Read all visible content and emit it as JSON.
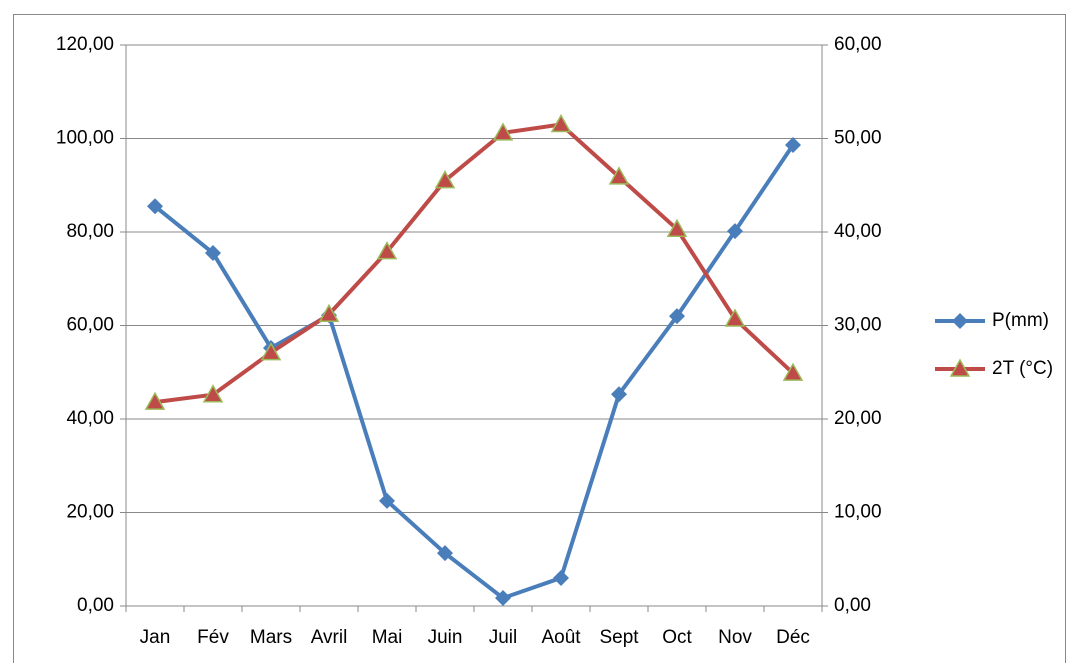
{
  "chart_data": {
    "type": "line",
    "categories": [
      "Jan",
      "Fév",
      "Mars",
      "Avril",
      "Mai",
      "Juin",
      "Juil",
      "Août",
      "Sept",
      "Oct",
      "Nov",
      "Déc"
    ],
    "series": [
      {
        "name": "P(mm)",
        "color": "#4a7ebb",
        "marker": "diamond",
        "axis": "y",
        "values": [
          85.5,
          75.5,
          55.2,
          62.2,
          22.5,
          11.3,
          1.7,
          6.0,
          45.3,
          62.0,
          80.2,
          98.6
        ]
      },
      {
        "name": "2T (°C)",
        "color": "#be4b48",
        "marker": "triangle",
        "marker_edge": "#9bbb59",
        "axis": "y2",
        "values": [
          21.8,
          22.6,
          27.1,
          31.2,
          37.9,
          45.5,
          50.6,
          51.5,
          45.9,
          40.3,
          30.7,
          24.9
        ]
      }
    ],
    "ylim": [
      0,
      120
    ],
    "yticks": [
      {
        "value": 0,
        "label": "0,00"
      },
      {
        "value": 20,
        "label": "20,00"
      },
      {
        "value": 40,
        "label": "40,00"
      },
      {
        "value": 60,
        "label": "60,00"
      },
      {
        "value": 80,
        "label": "80,00"
      },
      {
        "value": 100,
        "label": "100,00"
      },
      {
        "value": 120,
        "label": "120,00"
      }
    ],
    "y2lim": [
      0,
      60
    ],
    "y2ticks": [
      {
        "value": 0,
        "label": "0,00"
      },
      {
        "value": 10,
        "label": "10,00"
      },
      {
        "value": 20,
        "label": "20,00"
      },
      {
        "value": 30,
        "label": "30,00"
      },
      {
        "value": 40,
        "label": "40,00"
      },
      {
        "value": 50,
        "label": "50,00"
      },
      {
        "value": 60,
        "label": "60,00"
      }
    ],
    "grid": true,
    "legend": "right"
  }
}
